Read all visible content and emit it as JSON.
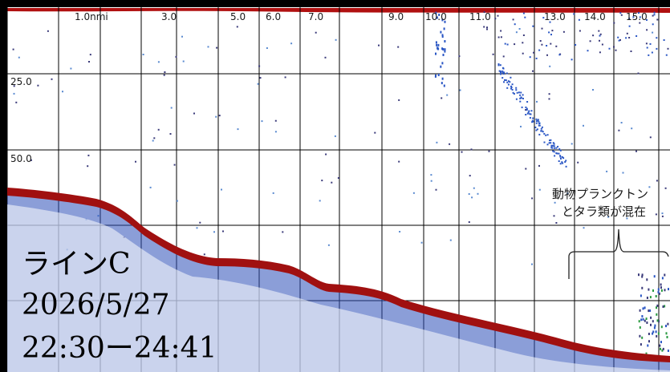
{
  "echogram": {
    "distance_labels": [
      "1.0nmi",
      "3.0",
      "5.0",
      "6.0",
      "7.0",
      "9.0",
      "10.0",
      "11.0",
      "13.0",
      "14.0",
      "15.0"
    ],
    "depth_labels": [
      "25.0",
      "50.0"
    ],
    "colors": {
      "bottom": "#a01010",
      "sub_bottom": "#2b4fb8",
      "scatter": "#3a3a7a",
      "surface": "#b01010",
      "plankton": "#2a56c4"
    }
  },
  "annotation": {
    "line1": "動物プランクトン",
    "line2": "とタラ類が混在"
  },
  "info": {
    "line_name": "ラインC",
    "date": "2026/5/27",
    "time_range": "22:30ー24:41"
  }
}
